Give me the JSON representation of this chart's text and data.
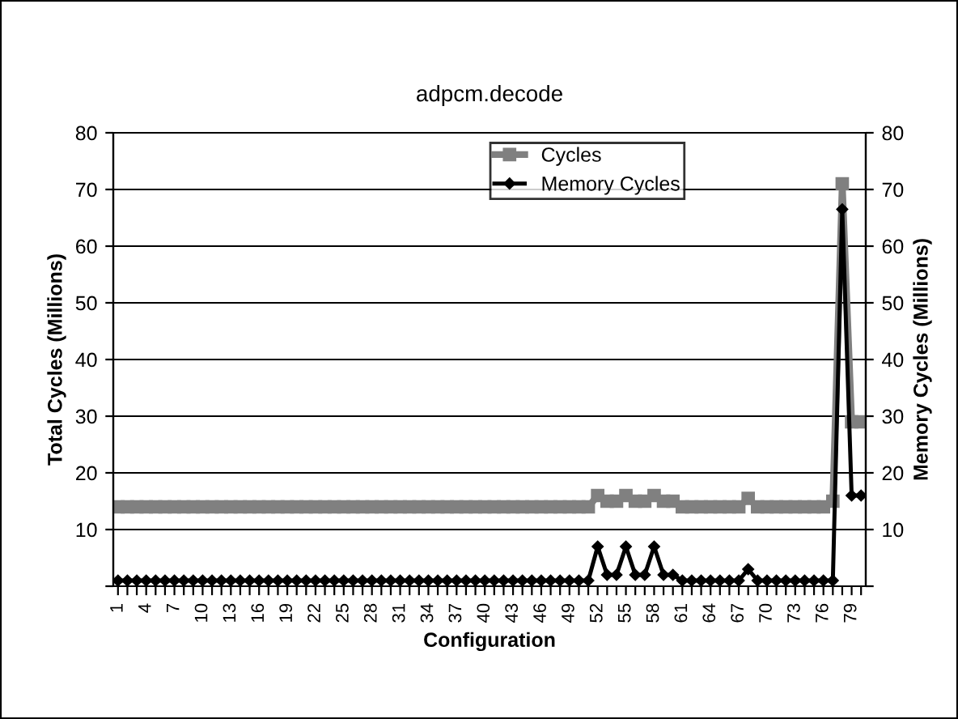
{
  "chart_data": {
    "type": "line",
    "title": "adpcm.decode",
    "xlabel": "Configuration",
    "ylabel": "Total Cycles (Millions)",
    "y2label": "Memory Cycles (Millions)",
    "categories": [
      "1",
      null,
      null,
      "4",
      null,
      null,
      "7",
      null,
      null,
      "10",
      null,
      null,
      "13",
      null,
      null,
      "16",
      null,
      null,
      "19",
      null,
      null,
      "22",
      null,
      null,
      "25",
      null,
      null,
      "28",
      null,
      null,
      "31",
      null,
      null,
      "34",
      null,
      null,
      "37",
      null,
      null,
      "40",
      null,
      null,
      "43",
      null,
      null,
      "46",
      null,
      null,
      "49",
      null,
      null,
      "52",
      null,
      null,
      "55",
      null,
      null,
      "58",
      null,
      null,
      "61",
      null,
      null,
      "64",
      null,
      null,
      "67",
      null,
      null,
      "70",
      null,
      null,
      "73",
      null,
      null,
      "76",
      null,
      null,
      "79",
      null
    ],
    "series": [
      {
        "name": "Cycles",
        "color": "#808080",
        "marker": "square",
        "values": [
          14,
          14,
          14,
          14,
          14,
          14,
          14,
          14,
          14,
          14,
          14,
          14,
          14,
          14,
          14,
          14,
          14,
          14,
          14,
          14,
          14,
          14,
          14,
          14,
          14,
          14,
          14,
          14,
          14,
          14,
          14,
          14,
          14,
          14,
          14,
          14,
          14,
          14,
          14,
          14,
          14,
          14,
          14,
          14,
          14,
          14,
          14,
          14,
          14,
          14,
          14,
          16,
          15,
          15,
          16,
          15,
          15,
          16,
          15,
          15,
          14,
          14,
          14,
          14,
          14,
          14,
          14,
          15.5,
          14,
          14,
          14,
          14,
          14,
          14,
          14,
          14,
          15,
          71,
          29,
          29
        ]
      },
      {
        "name": "Memory Cycles",
        "color": "#000000",
        "marker": "diamond",
        "axis": "y2",
        "values": [
          1,
          1,
          1,
          1,
          1,
          1,
          1,
          1,
          1,
          1,
          1,
          1,
          1,
          1,
          1,
          1,
          1,
          1,
          1,
          1,
          1,
          1,
          1,
          1,
          1,
          1,
          1,
          1,
          1,
          1,
          1,
          1,
          1,
          1,
          1,
          1,
          1,
          1,
          1,
          1,
          1,
          1,
          1,
          1,
          1,
          1,
          1,
          1,
          1,
          1,
          1,
          7,
          2,
          2,
          7,
          2,
          2,
          7,
          2,
          2,
          1,
          1,
          1,
          1,
          1,
          1,
          1,
          3,
          1,
          1,
          1,
          1,
          1,
          1,
          1,
          1,
          1,
          66.5,
          16,
          16
        ]
      }
    ],
    "ylim": [
      0,
      80
    ],
    "yticks": [
      {
        "value": 0,
        "label": null
      },
      10,
      20,
      30,
      40,
      50,
      60,
      70,
      80
    ],
    "y2lim": [
      0,
      80
    ],
    "y2ticks": [
      {
        "value": 0,
        "label": null
      },
      10,
      20,
      30,
      40,
      50,
      60,
      70,
      80
    ],
    "grid": "y",
    "legend": "top",
    "line_style": "solid"
  }
}
